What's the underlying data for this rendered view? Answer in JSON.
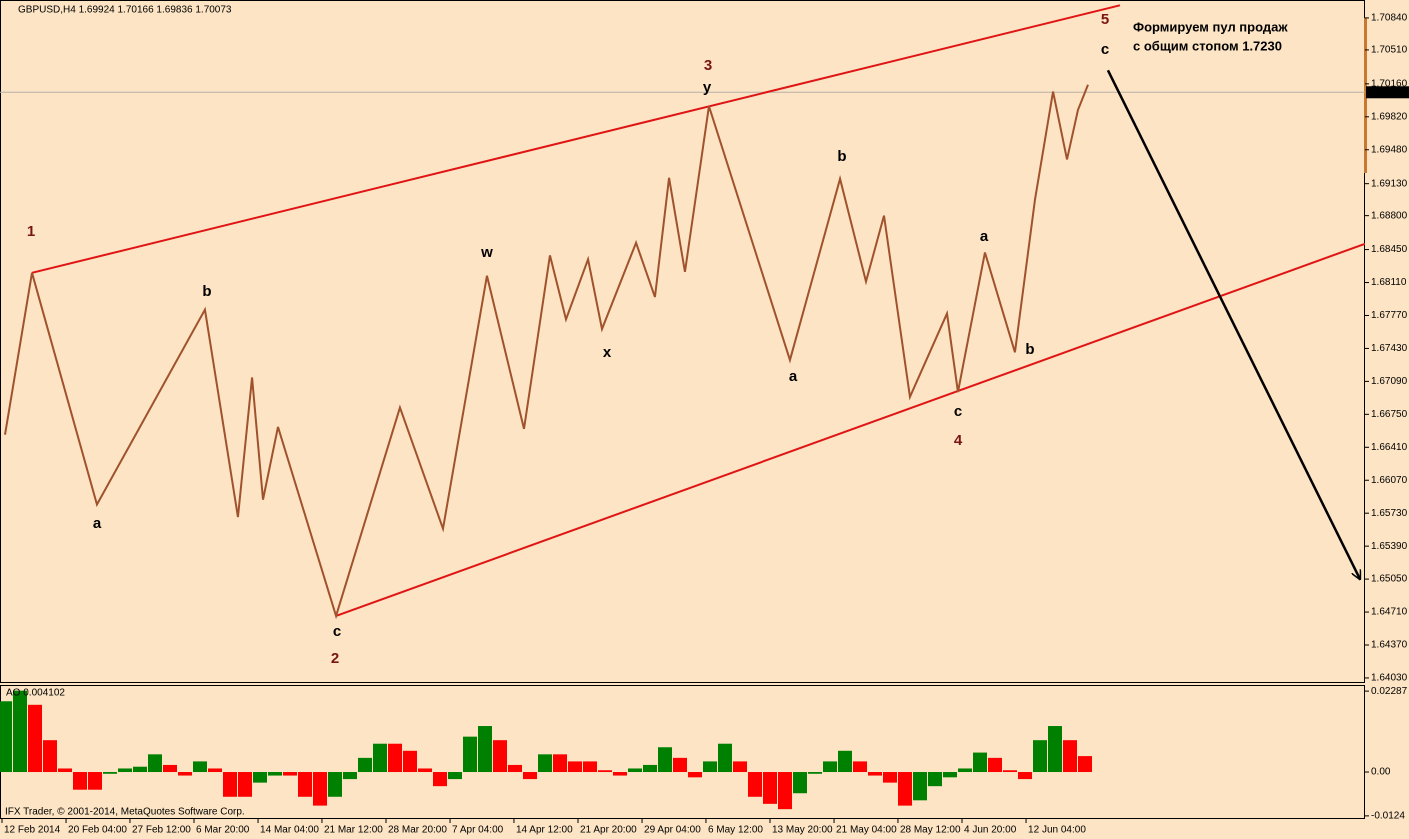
{
  "chart_data": [
    {
      "type": "line",
      "title": "GBPUSD,H4  1.69924 1.70166 1.69836 1.70073",
      "xlim": [
        -0.3333,
        90.6667
      ],
      "ylim": [
        1.63978,
        1.71025
      ],
      "xticks": [
        {
          "value": -0.2,
          "label": "12 Feb 2014"
        },
        {
          "value": 4.07,
          "label": "20 Feb 04:00"
        },
        {
          "value": 8.33,
          "label": "27 Feb 12:00"
        },
        {
          "value": 12.6,
          "label": "6 Mar 20:00"
        },
        {
          "value": 16.87,
          "label": "14 Mar 04:00"
        },
        {
          "value": 21.13,
          "label": "21 Mar 12:00"
        },
        {
          "value": 25.4,
          "label": "28 Mar 20:00"
        },
        {
          "value": 29.67,
          "label": "7 Apr 04:00"
        },
        {
          "value": 33.93,
          "label": "14 Apr 12:00"
        },
        {
          "value": 38.2,
          "label": "21 Apr 20:00"
        },
        {
          "value": 42.47,
          "label": "29 Apr 04:00"
        },
        {
          "value": 46.73,
          "label": "6 May 12:00"
        },
        {
          "value": 51,
          "label": "13 May 20:00"
        },
        {
          "value": 55.27,
          "label": "21 May 04:00"
        },
        {
          "value": 59.53,
          "label": "28 May 12:00"
        },
        {
          "value": 63.8,
          "label": "4 Jun 20:00"
        },
        {
          "value": 68.07,
          "label": "12 Jun 04:00"
        }
      ],
      "yticks": [
        {
          "value": 1.7084,
          "label": "1.70840"
        },
        {
          "value": 1.7051,
          "label": "1.70510"
        },
        {
          "value": 1.7016,
          "label": "1.70160"
        },
        {
          "value": 1.6982,
          "label": "1.69820"
        },
        {
          "value": 1.6948,
          "label": "1.69480"
        },
        {
          "value": 1.6913,
          "label": "1.69130"
        },
        {
          "value": 1.688,
          "label": "1.68800"
        },
        {
          "value": 1.6845,
          "label": "1.68450"
        },
        {
          "value": 1.6811,
          "label": "1.68110"
        },
        {
          "value": 1.6777,
          "label": "1.67770"
        },
        {
          "value": 1.6743,
          "label": "1.67430"
        },
        {
          "value": 1.6709,
          "label": "1.67090"
        },
        {
          "value": 1.6675,
          "label": "1.66750"
        },
        {
          "value": 1.6641,
          "label": "1.66410"
        },
        {
          "value": 1.6607,
          "label": "1.66070"
        },
        {
          "value": 1.6573,
          "label": "1.65730"
        },
        {
          "value": 1.6539,
          "label": "1.65390"
        },
        {
          "value": 1.6505,
          "label": "1.65050"
        },
        {
          "value": 1.6471,
          "label": "1.64710"
        },
        {
          "value": 1.6437,
          "label": "1.64370"
        },
        {
          "value": 1.6403,
          "label": "1.64030"
        }
      ],
      "x": [
        0,
        1.8,
        6.13,
        13.33,
        15.53,
        16.47,
        17.2,
        18.2,
        22.07,
        26.33,
        29.2,
        32.13,
        34.6,
        36.33,
        37.4,
        38.87,
        39.8,
        42.07,
        43.33,
        44.27,
        45.33,
        46.93,
        52.33,
        55.67,
        57.4,
        58.6,
        60.33,
        62.8,
        63.53,
        65.33,
        67.33,
        68.67,
        69.87,
        70.8,
        71.53,
        72.2
      ],
      "values": [
        1.6654,
        1.6821,
        1.6582,
        1.6783,
        1.6569,
        1.6713,
        1.6587,
        1.6662,
        1.6467,
        1.6682,
        1.6557,
        1.6818,
        1.666,
        1.6839,
        1.6773,
        1.6835,
        1.6763,
        1.6852,
        1.6796,
        1.6919,
        1.6822,
        1.6993,
        1.6731,
        1.6918,
        1.6812,
        1.688,
        1.6693,
        1.6779,
        1.6698,
        1.6842,
        1.6739,
        1.6897,
        1.7008,
        1.6938,
        1.6989,
        1.7015
      ],
      "color": "#a0522d",
      "current_price": 1.70073,
      "channel_lines": [
        {
          "x": [
            1.8,
            74.33
          ],
          "values": [
            1.6821,
            1.7097
          ],
          "color": "#e01414"
        },
        {
          "x": [
            22.07,
            90.67
          ],
          "values": [
            1.6467,
            1.6851
          ],
          "color": "#e01414"
        }
      ],
      "arrow": {
        "x": [
          73.53,
          90.33
        ],
        "values": [
          1.703,
          1.6505
        ],
        "color": "#000000"
      },
      "wave_labels": [
        {
          "text": "1",
          "color": "#7a1414"
        },
        {
          "text": "a",
          "color": "#000000"
        },
        {
          "text": "b",
          "color": "#000000"
        },
        {
          "text": "c",
          "color": "#000000"
        },
        {
          "text": "2",
          "color": "#7a1414"
        },
        {
          "text": "w",
          "color": "#000000"
        },
        {
          "text": "x",
          "color": "#000000"
        },
        {
          "text": "3",
          "color": "#7a1414"
        },
        {
          "text": "y",
          "color": "#000000"
        },
        {
          "text": "a",
          "color": "#000000"
        },
        {
          "text": "b",
          "color": "#000000"
        },
        {
          "text": "c",
          "color": "#000000"
        },
        {
          "text": "4",
          "color": "#7a1414"
        },
        {
          "text": "a",
          "color": "#000000"
        },
        {
          "text": "b",
          "color": "#000000"
        },
        {
          "text": "5",
          "color": "#7a1414"
        },
        {
          "text": "c",
          "color": "#000000"
        }
      ],
      "annotation": [
        "Формируем пул продаж",
        "с общим стопом 1.7230"
      ]
    },
    {
      "type": "bar",
      "title": "AO 0.004102",
      "xlim": [
        -0.3333,
        90.6667
      ],
      "ylim": [
        -0.013,
        0.0246
      ],
      "yticks": [
        0.02287,
        {
          "value": 0,
          "label": "0.00"
        },
        -0.0124
      ],
      "x": [
        0,
        1,
        2,
        3,
        4,
        5,
        6,
        7,
        8,
        9,
        10,
        11,
        12,
        13,
        14,
        15,
        16,
        17,
        18,
        19,
        20,
        21,
        22,
        23,
        24,
        25,
        26,
        27,
        28,
        29,
        30,
        31,
        32,
        33,
        34,
        35,
        36,
        37,
        38,
        39,
        40,
        41,
        42,
        43,
        44,
        45,
        46,
        47,
        48,
        49,
        50,
        51,
        52,
        53,
        54,
        55,
        56,
        57,
        58,
        59,
        60,
        61,
        62,
        63,
        64,
        65,
        66,
        67,
        68,
        69,
        70,
        71,
        72
      ],
      "values": [
        0.02,
        0.023,
        0.019,
        0.009,
        0.001,
        -0.005,
        -0.005,
        -0.0005,
        0.001,
        0.0015,
        0.005,
        0.002,
        -0.001,
        0.003,
        0.001,
        -0.007,
        -0.007,
        -0.003,
        -0.001,
        -0.001,
        -0.007,
        -0.0095,
        -0.007,
        -0.002,
        0.004,
        0.008,
        0.008,
        0.006,
        0.001,
        -0.004,
        -0.002,
        0.01,
        0.013,
        0.009,
        0.002,
        -0.002,
        0.005,
        0.005,
        0.003,
        0.003,
        0.0005,
        -0.001,
        0.001,
        0.002,
        0.007,
        0.004,
        -0.0015,
        0.003,
        0.008,
        0.003,
        -0.007,
        -0.009,
        -0.0105,
        -0.006,
        -0.0005,
        0.003,
        0.006,
        0.003,
        -0.001,
        -0.003,
        -0.0095,
        -0.008,
        -0.004,
        -0.0015,
        0.001,
        0.0055,
        0.004,
        0.0005,
        -0.002,
        0.009,
        0.013,
        0.009,
        0.0045
      ],
      "up_color": "#008000",
      "down_color": "#ff0000"
    }
  ],
  "footer": "IFX Trader, © 2001-2014, MetaQuotes Software Corp."
}
